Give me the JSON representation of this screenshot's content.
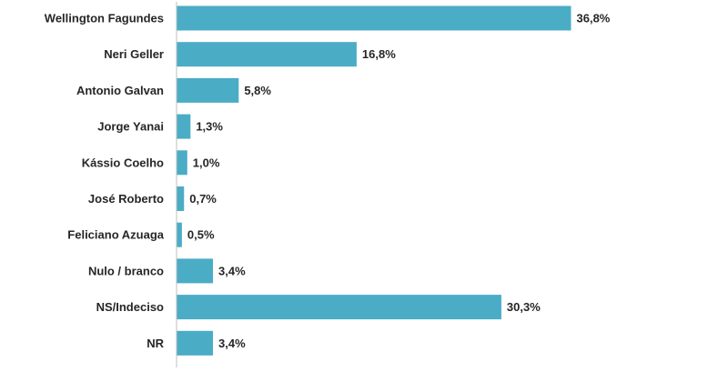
{
  "chart_data": {
    "type": "bar",
    "orientation": "horizontal",
    "categories": [
      "Wellington Fagundes",
      "Neri Geller",
      "Antonio Galvan",
      "Jorge Yanai",
      "Kássio Coelho",
      "José Roberto",
      "Feliciano Azuaga",
      "Nulo / branco",
      "NS/Indeciso",
      "NR"
    ],
    "values": [
      36.8,
      16.8,
      5.8,
      1.3,
      1.0,
      0.7,
      0.5,
      3.4,
      30.3,
      3.4
    ],
    "value_labels": [
      "36,8%",
      "16,8%",
      "5,8%",
      "1,3%",
      "1,0%",
      "0,7%",
      "0,5%",
      "3,4%",
      "30,3%",
      "3,4%"
    ],
    "unit": "%",
    "title": "",
    "xlabel": "",
    "ylabel": "",
    "xlim": [
      0,
      40
    ],
    "grid": false,
    "legend": "none",
    "bar_color": "#4bacc6"
  }
}
